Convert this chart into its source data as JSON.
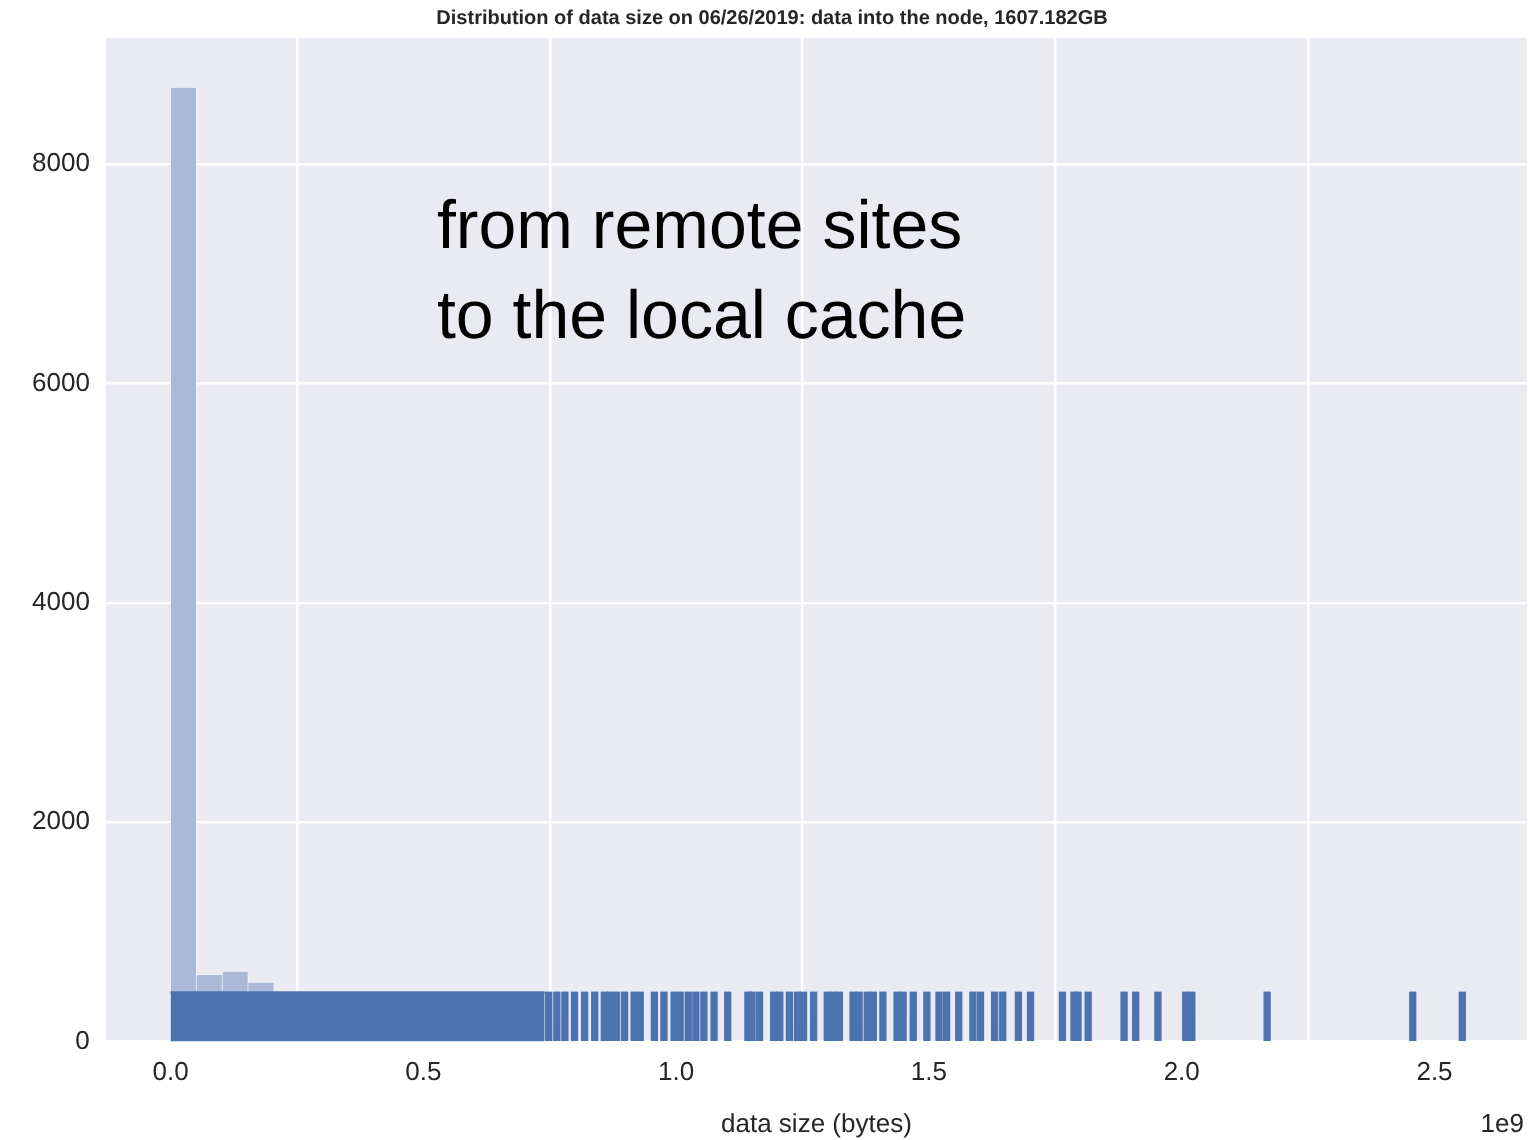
{
  "chart_data": {
    "type": "histogram",
    "title": "Distribution of data size on 06/26/2019: data into the node, 1607.182GB",
    "xlabel": "data size (bytes)",
    "annotations": [
      "from remote sites\nto the local cache",
      "1e9"
    ],
    "bins": [
      0,
      0.0511,
      0.1022,
      0.1533,
      0.2044,
      0.2555,
      0.3066,
      0.3577,
      0.4088,
      0.4599,
      0.511,
      0.5621,
      0.6132,
      0.6643,
      0.7154,
      0.7665,
      0.8176,
      0.8687,
      0.9198,
      0.9709,
      1.022,
      1.0731,
      1.1242,
      1.1753,
      1.2264,
      1.2775,
      1.3286,
      1.3797,
      1.4308,
      1.4819,
      1.533,
      1.5841,
      1.6352,
      1.6863,
      1.7374,
      1.7885,
      1.8396,
      1.8907,
      1.9418,
      1.9929,
      2.044,
      2.0951,
      2.1462,
      2.1973,
      2.2484,
      2.2995,
      2.3506,
      2.4017,
      2.4528,
      2.5039,
      2.555
    ],
    "values": [
      8700,
      610,
      640,
      540,
      null,
      null,
      null,
      null,
      null,
      null,
      null,
      null,
      null,
      null,
      null,
      null,
      null,
      null,
      null,
      null,
      null,
      null,
      null,
      null,
      null,
      null,
      null,
      null,
      null,
      null,
      null,
      null,
      null,
      null,
      null,
      null,
      null,
      null,
      null,
      null,
      null,
      null,
      null,
      null,
      null,
      null,
      null,
      null,
      null,
      null
    ],
    "color": "#a9b9d8",
    "series": [
      {
        "type": "area",
        "color": "#4c72b0",
        "x": [
          0,
          0.74
        ],
        "values": [
          450,
          450
        ]
      },
      {
        "type": "bar",
        "color": "#4c72b0",
        "x": [
          0.748,
          0.764,
          0.78,
          0.799,
          0.819,
          0.839,
          0.858,
          0.87,
          0.882,
          0.898,
          0.917,
          0.929,
          0.957,
          0.976,
          0.996,
          1.008,
          1.024,
          1.039,
          1.055,
          1.075,
          1.102,
          1.142,
          1.15,
          1.165,
          1.193,
          1.205,
          1.224,
          1.24,
          1.252,
          1.272,
          1.299,
          1.311,
          1.323,
          1.35,
          1.362,
          1.378,
          1.39,
          1.409,
          1.437,
          1.449,
          1.469,
          1.496,
          1.52,
          1.535,
          1.559,
          1.587,
          1.602,
          1.63,
          1.646,
          1.677,
          1.701,
          1.764,
          1.787,
          1.795,
          1.815,
          1.886,
          1.909,
          1.953,
          2.008,
          2.02,
          2.169,
          2.457,
          2.555
        ],
        "values": [
          450,
          450,
          450,
          450,
          450,
          450,
          450,
          450,
          450,
          450,
          450,
          450,
          450,
          450,
          450,
          450,
          450,
          450,
          450,
          450,
          450,
          450,
          450,
          450,
          450,
          450,
          450,
          450,
          450,
          450,
          450,
          450,
          450,
          450,
          450,
          450,
          450,
          450,
          450,
          450,
          450,
          450,
          450,
          450,
          450,
          450,
          450,
          450,
          450,
          450,
          450,
          450,
          450,
          450,
          450,
          450,
          450,
          450,
          450,
          450,
          450,
          450,
          450
        ]
      }
    ],
    "xlim": [
      -0.128,
      2.683
    ],
    "ylim": [
      0,
      9150
    ],
    "xticks": [
      {
        "value": 0,
        "label": "0.0"
      },
      0.5,
      {
        "value": 1,
        "label": "1.0"
      },
      1.5,
      {
        "value": 2,
        "label": "2.0"
      },
      2.5
    ],
    "yticks": [
      0,
      2000,
      4000,
      6000,
      8000
    ],
    "grid": true,
    "legend": false
  }
}
